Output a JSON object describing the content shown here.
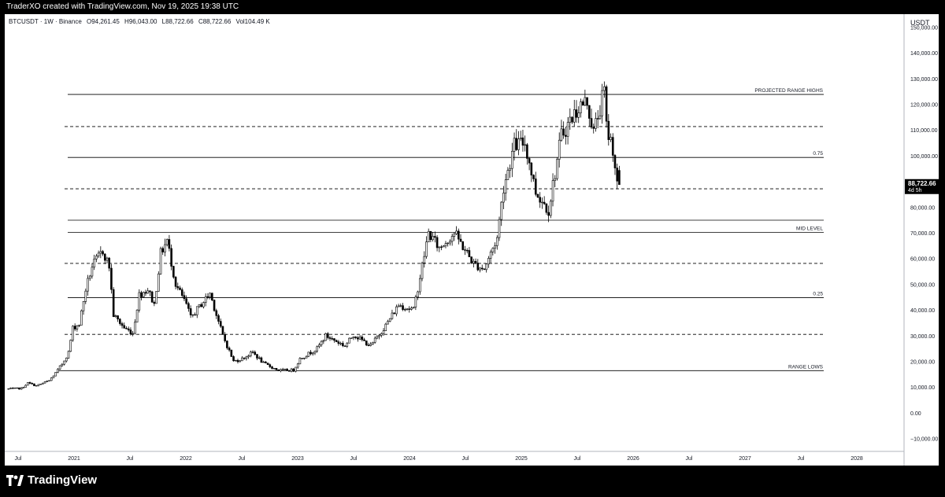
{
  "header": {
    "credit": "TraderXO created with TradingView.com, Nov 19, 2025 19:38 UTC"
  },
  "legend": {
    "symbol": "BTCUSDT · 1W · Binance",
    "open": "O94,261.45",
    "high": "H96,043.00",
    "low": "L88,722.66",
    "close": "C88,722.66",
    "volume": "Vol104.49 K"
  },
  "price_axis": {
    "currency": "USDT",
    "last_price": "88,722.66",
    "countdown": "4d 5h"
  },
  "footer": {
    "brand": "TradingView"
  },
  "chart_data": {
    "type": "candlestick",
    "ylim": [
      -15000,
      155000
    ],
    "y_ticks": [
      -10000,
      0,
      10000,
      20000,
      30000,
      40000,
      50000,
      60000,
      70000,
      80000,
      90000,
      100000,
      110000,
      120000,
      130000,
      140000,
      150000
    ],
    "y_tick_labels": [
      "−10,000.00",
      "0.00",
      "10,000.00",
      "20,000.00",
      "30,000.00",
      "40,000.00",
      "50,000.00",
      "60,000.00",
      "70,000.00",
      "80,000.00",
      "90,000.00",
      "100,000.00",
      "110,000.00",
      "120,000.00",
      "130,000.00",
      "140,000.00",
      "150,000.00"
    ],
    "x_tick_labels": [
      "Jul",
      "2021",
      "Jul",
      "2022",
      "Jul",
      "2023",
      "Jul",
      "2024",
      "Jul",
      "2025",
      "Jul",
      "2026",
      "Jul",
      "2027",
      "Jul",
      "2028"
    ],
    "year_labels": [
      "2021",
      "2022",
      "2023",
      "2024",
      "2025",
      "2026",
      "2027",
      "2028"
    ],
    "levels": [
      {
        "price": 123800,
        "style": "solid",
        "label": "PROJECTED RANGE HIGHS"
      },
      {
        "price": 111300,
        "style": "dashed",
        "label": ""
      },
      {
        "price": 99300,
        "style": "solid",
        "label": "0.75"
      },
      {
        "price": 87100,
        "style": "dashed",
        "label": ""
      },
      {
        "price": 74900,
        "style": "solid",
        "label": ""
      },
      {
        "price": 70200,
        "style": "solid",
        "label": "MID LEVEL"
      },
      {
        "price": 58100,
        "style": "dashed",
        "label": ""
      },
      {
        "price": 44800,
        "style": "solid",
        "label": "0.25"
      },
      {
        "price": 30500,
        "style": "dashed",
        "label": ""
      },
      {
        "price": 16400,
        "style": "solid",
        "label": "RANGE LOWS"
      }
    ],
    "price_path": [
      [
        "2020-06-01",
        9300
      ],
      [
        "2020-07-20",
        9500
      ],
      [
        "2020-08-10",
        11600
      ],
      [
        "2020-09-07",
        10500
      ],
      [
        "2020-10-19",
        12500
      ],
      [
        "2020-11-09",
        15500
      ],
      [
        "2020-11-30",
        19000
      ],
      [
        "2020-12-21",
        23500
      ],
      [
        "2021-01-04",
        33000
      ],
      [
        "2021-01-25",
        34500
      ],
      [
        "2021-02-15",
        48000
      ],
      [
        "2021-03-08",
        57000
      ],
      [
        "2021-04-12",
        63000
      ],
      [
        "2021-05-03",
        57000
      ],
      [
        "2021-05-17",
        38000
      ],
      [
        "2021-06-21",
        33000
      ],
      [
        "2021-07-19",
        31000
      ],
      [
        "2021-08-09",
        46000
      ],
      [
        "2021-09-06",
        48000
      ],
      [
        "2021-09-27",
        42000
      ],
      [
        "2021-10-18",
        62000
      ],
      [
        "2021-11-08",
        67000
      ],
      [
        "2021-12-06",
        50000
      ],
      [
        "2022-01-10",
        42000
      ],
      [
        "2022-01-24",
        37000
      ],
      [
        "2022-03-28",
        46500
      ],
      [
        "2022-05-09",
        30000
      ],
      [
        "2022-06-13",
        20000
      ],
      [
        "2022-07-11",
        21000
      ],
      [
        "2022-08-15",
        23500
      ],
      [
        "2022-09-19",
        19200
      ],
      [
        "2022-11-07",
        16500
      ],
      [
        "2022-12-26",
        16600
      ],
      [
        "2023-01-16",
        21000
      ],
      [
        "2023-03-13",
        25000
      ],
      [
        "2023-04-10",
        30000
      ],
      [
        "2023-06-12",
        26000
      ],
      [
        "2023-07-10",
        30400
      ],
      [
        "2023-09-04",
        26000
      ],
      [
        "2023-10-23",
        34000
      ],
      [
        "2023-12-04",
        42000
      ],
      [
        "2024-01-22",
        40000
      ],
      [
        "2024-03-11",
        70000
      ],
      [
        "2024-04-15",
        64000
      ],
      [
        "2024-06-03",
        70000
      ],
      [
        "2024-08-05",
        58000
      ],
      [
        "2024-09-09",
        56000
      ],
      [
        "2024-10-21",
        68000
      ],
      [
        "2024-11-11",
        88000
      ],
      [
        "2024-12-16",
        104000
      ],
      [
        "2025-01-20",
        105000
      ],
      [
        "2025-02-24",
        86000
      ],
      [
        "2025-04-07",
        79000
      ],
      [
        "2025-05-19",
        108000
      ],
      [
        "2025-07-14",
        119000
      ],
      [
        "2025-08-11",
        121000
      ],
      [
        "2025-09-01",
        109000
      ],
      [
        "2025-10-06",
        125000
      ],
      [
        "2025-10-13",
        111000
      ],
      [
        "2025-11-03",
        103000
      ],
      [
        "2025-11-17",
        88722
      ]
    ]
  }
}
